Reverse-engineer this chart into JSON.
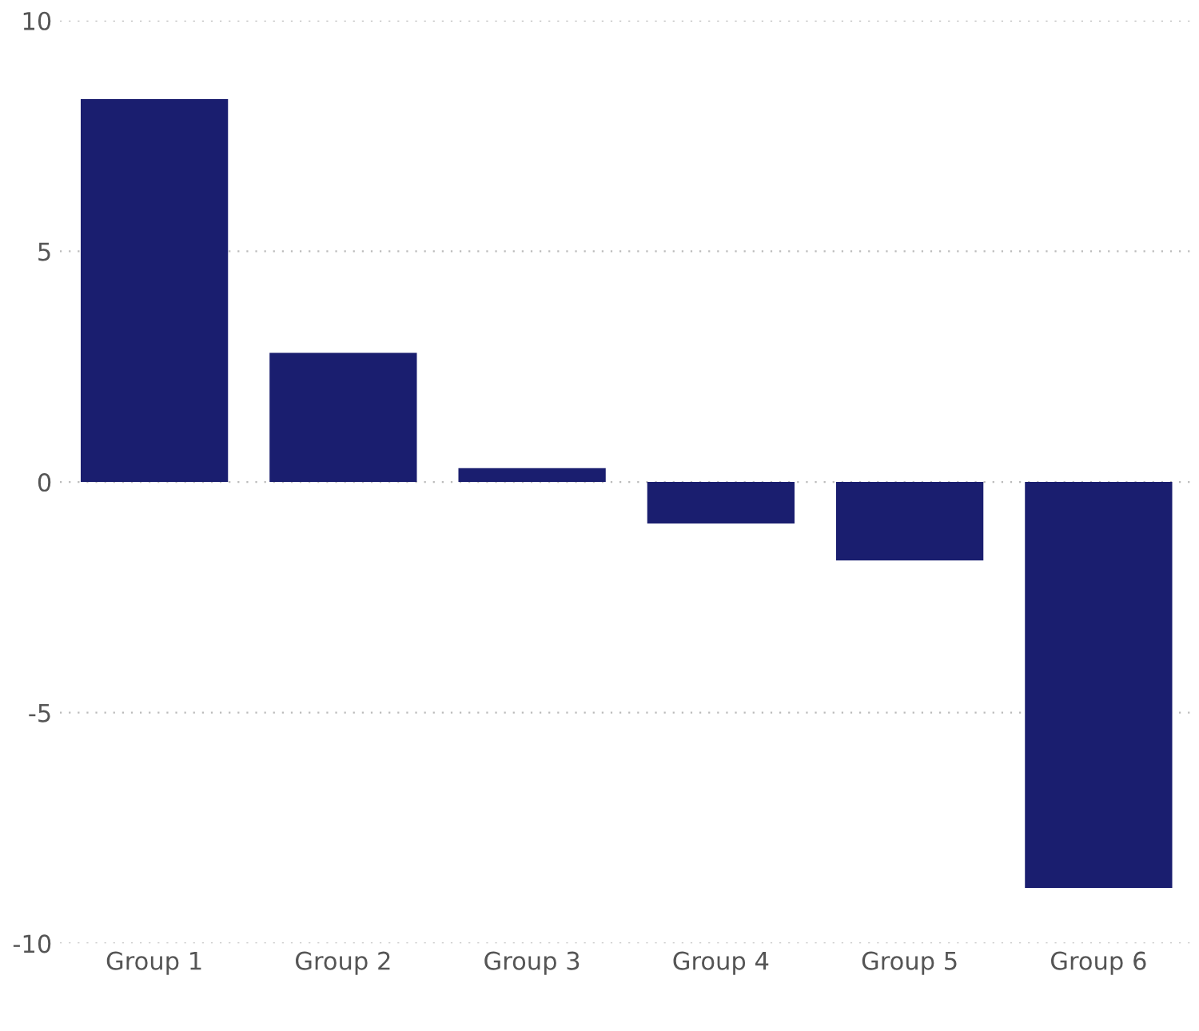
{
  "chart_data": {
    "type": "bar",
    "categories": [
      "Group 1",
      "Group 2",
      "Group 3",
      "Group 4",
      "Group 5",
      "Group 6"
    ],
    "values": [
      8.3,
      2.8,
      0.3,
      -0.9,
      -1.7,
      -8.8
    ],
    "color": "#1a1e6f",
    "ylim": [
      -10,
      10
    ],
    "yticks": [
      {
        "value": -10,
        "label": "-10"
      },
      {
        "value": -5,
        "label": "-5"
      },
      0,
      5,
      10
    ],
    "grid": "y"
  }
}
